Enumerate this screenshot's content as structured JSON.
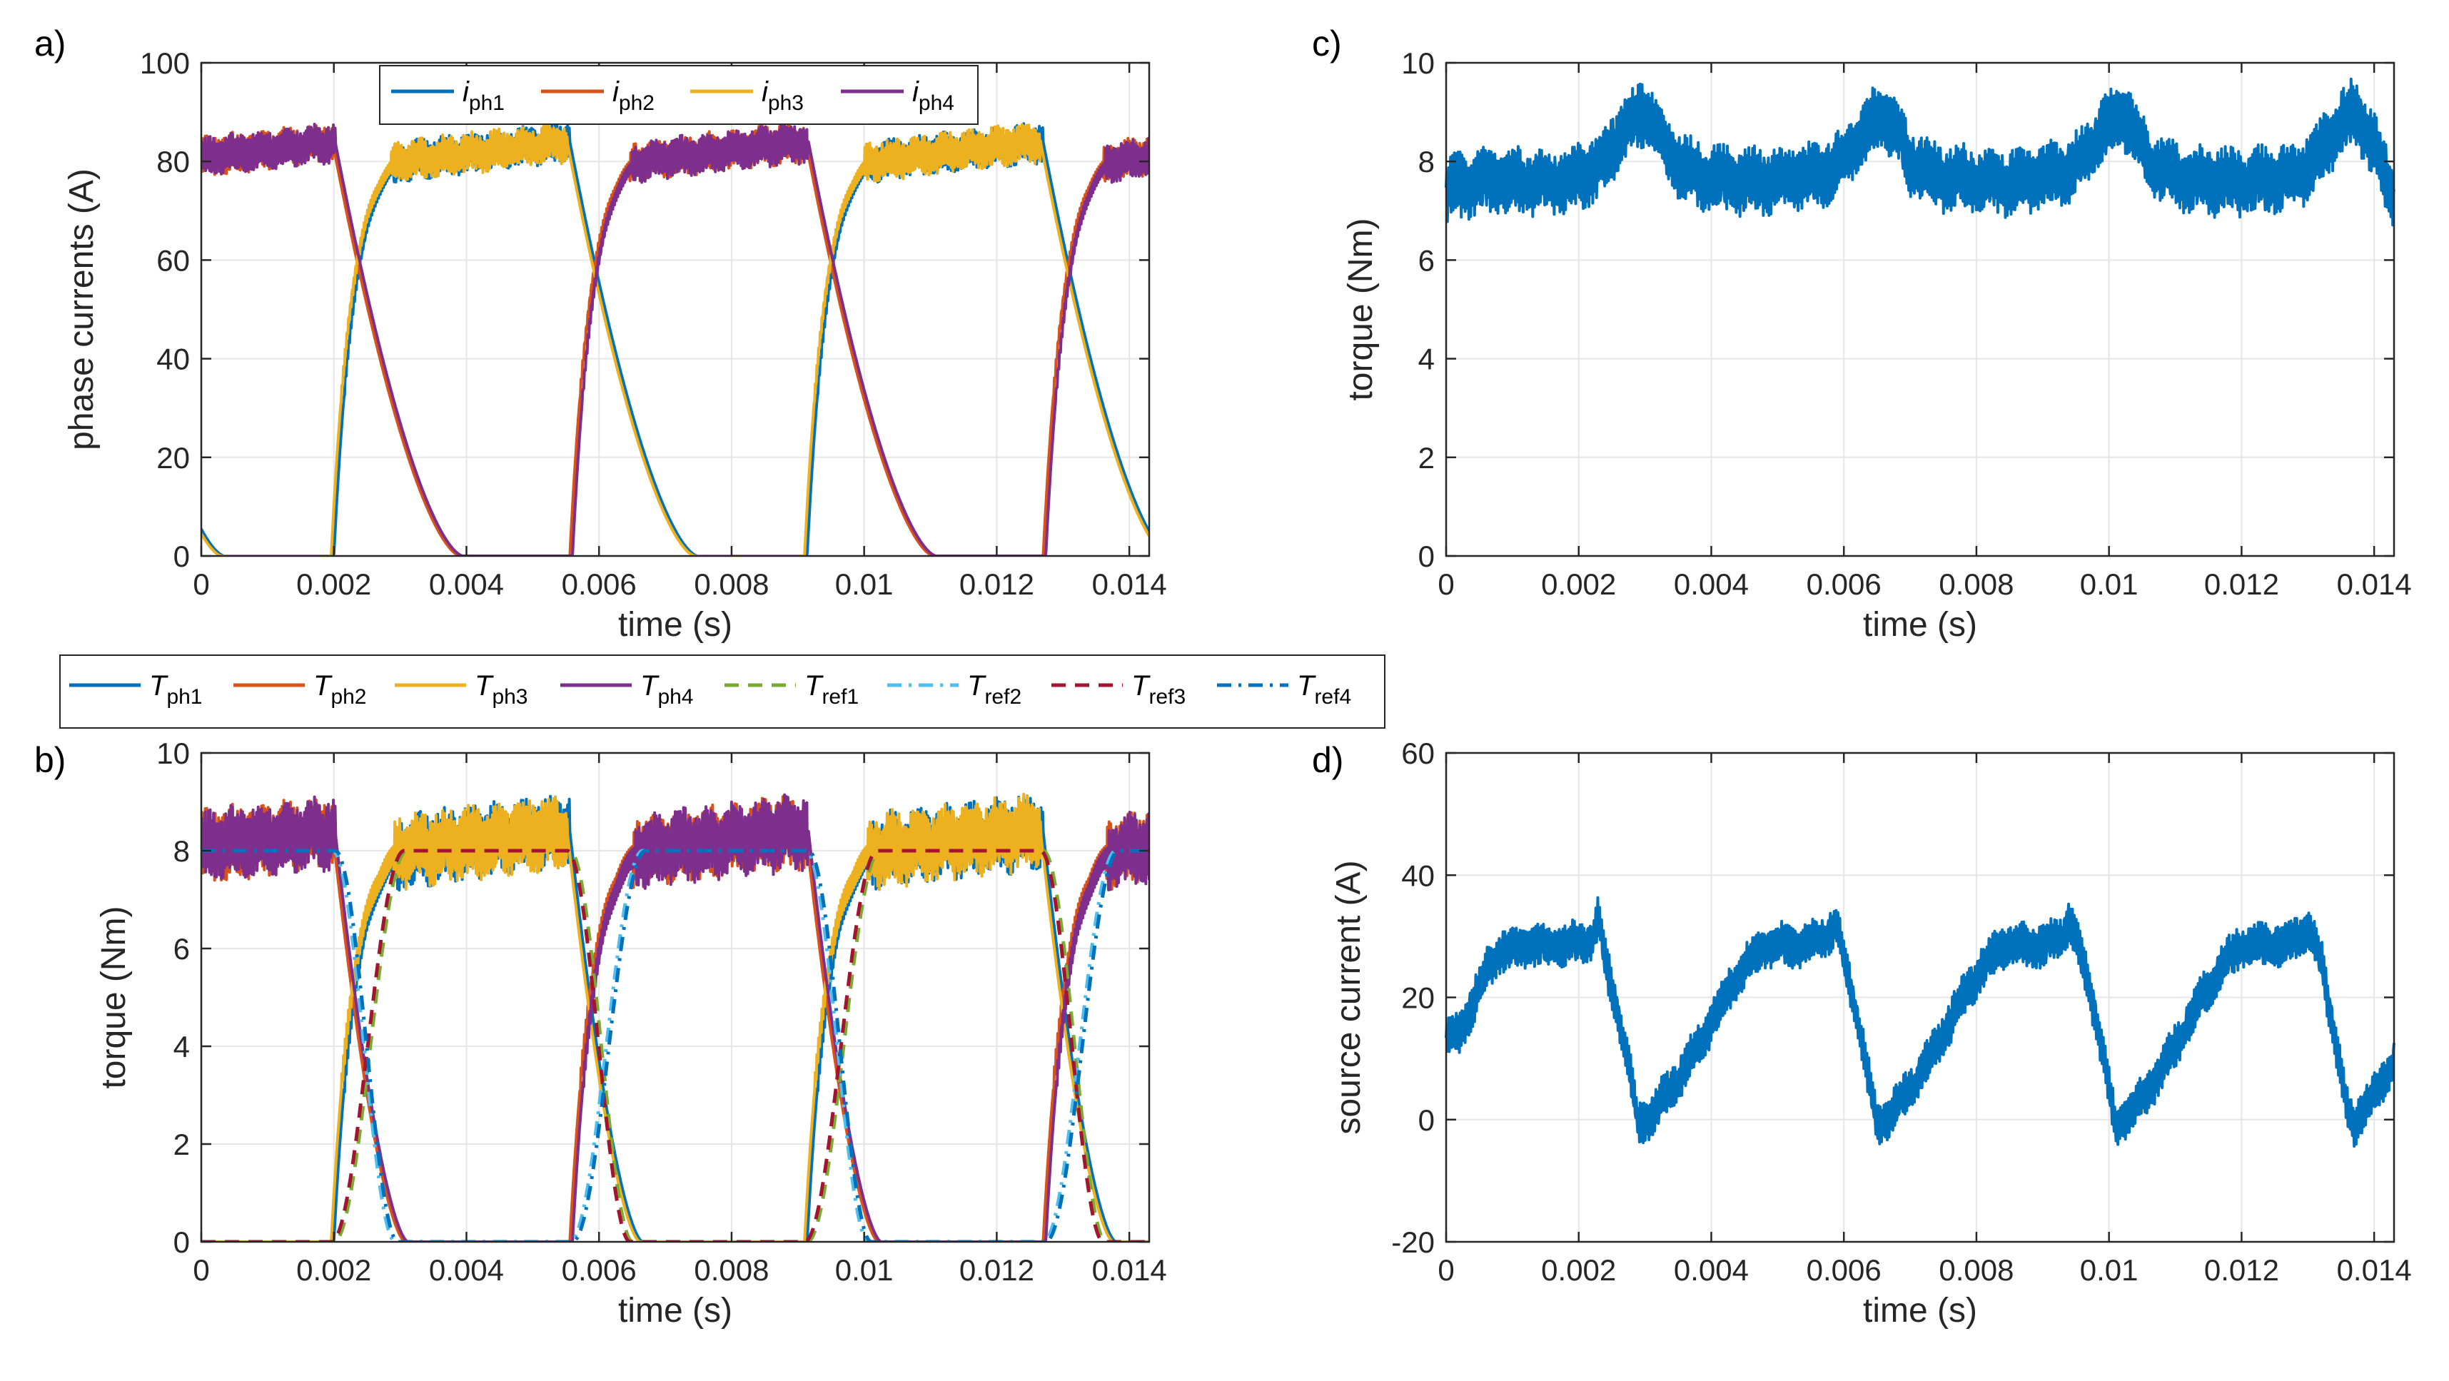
{
  "colors": {
    "ph1": "#0072BD",
    "ph2": "#D95319",
    "ph3": "#EDB120",
    "ph4": "#7E2F8E",
    "ref1": "#77AC30",
    "ref2": "#4DBEEE",
    "ref3": "#A2142F",
    "ref4": "#0072BD",
    "grid": "#e6e6e6",
    "axis": "#262626"
  },
  "chart_data": [
    {
      "id": "a",
      "panel_label": "a)",
      "type": "line",
      "xlabel": "time (s)",
      "ylabel": "phase currents (A)",
      "xlim": [
        0,
        0.0143
      ],
      "ylim": [
        0,
        100
      ],
      "xticks": [
        0,
        0.002,
        0.004,
        0.006,
        0.008,
        0.01,
        0.012,
        0.014
      ],
      "xtick_labels": [
        "0",
        "0.002",
        "0.004",
        "0.006",
        "0.008",
        "0.01",
        "0.012",
        "0.014"
      ],
      "yticks": [
        0,
        20,
        40,
        60,
        80,
        100
      ],
      "ytick_labels": [
        "0",
        "20",
        "40",
        "60",
        "80",
        "100"
      ],
      "grid": true,
      "legend_position": "top-inside",
      "period": 0.00714,
      "conduction": {
        "on": 0.00356,
        "flat_level": 80,
        "ripple": 3.5,
        "rise_time": 0.001,
        "fall_time": 0.00193
      },
      "series": [
        {
          "main": "i",
          "sub": "ph1",
          "color_key": "ph1",
          "style": "solid",
          "offset": 0.002
        },
        {
          "main": "i",
          "sub": "ph2",
          "color_key": "ph2",
          "style": "solid",
          "offset": 0.0127
        },
        {
          "main": "i",
          "sub": "ph3",
          "color_key": "ph3",
          "style": "solid",
          "offset": 0.0091
        },
        {
          "main": "i",
          "sub": "ph4",
          "color_key": "ph4",
          "style": "solid",
          "offset": 0.0056
        }
      ]
    },
    {
      "id": "b",
      "panel_label": "b)",
      "type": "line",
      "xlabel": "time (s)",
      "ylabel": "torque (Nm)",
      "xlim": [
        0,
        0.0143
      ],
      "ylim": [
        0,
        10
      ],
      "xticks": [
        0,
        0.002,
        0.004,
        0.006,
        0.008,
        0.01,
        0.012,
        0.014
      ],
      "xtick_labels": [
        "0",
        "0.002",
        "0.004",
        "0.006",
        "0.008",
        "0.01",
        "0.012",
        "0.014"
      ],
      "yticks": [
        0,
        2,
        4,
        6,
        8,
        10
      ],
      "ytick_labels": [
        "0",
        "2",
        "4",
        "6",
        "8",
        "10"
      ],
      "grid": true,
      "legend_position": "above",
      "period": 0.00714,
      "conduction": {
        "on": 0.00356,
        "flat_level": 8,
        "ripple": 0.65,
        "rise_time": 0.00105,
        "fall_time": 0.0011
      },
      "reference": {
        "on": 0.00356,
        "level": 8,
        "rise_time": 0.0011,
        "fall_time": 0.00095
      },
      "series": [
        {
          "main": "T",
          "sub": "ph1",
          "color_key": "ph1",
          "style": "solid",
          "offset": 0.002
        },
        {
          "main": "T",
          "sub": "ph2",
          "color_key": "ph2",
          "style": "solid",
          "offset": 0.0127
        },
        {
          "main": "T",
          "sub": "ph3",
          "color_key": "ph3",
          "style": "solid",
          "offset": 0.0091
        },
        {
          "main": "T",
          "sub": "ph4",
          "color_key": "ph4",
          "style": "solid",
          "offset": 0.0056
        },
        {
          "main": "T",
          "sub": "ref1",
          "color_key": "ref1",
          "style": "dashed",
          "offset": 0.002
        },
        {
          "main": "T",
          "sub": "ref2",
          "color_key": "ref2",
          "style": "dashdot",
          "offset": 0.0127
        },
        {
          "main": "T",
          "sub": "ref3",
          "color_key": "ref3",
          "style": "dashed",
          "offset": 0.0091
        },
        {
          "main": "T",
          "sub": "ref4",
          "color_key": "ref4",
          "style": "dashdot",
          "offset": 0.0056
        }
      ]
    },
    {
      "id": "c",
      "panel_label": "c)",
      "type": "line",
      "xlabel": "time (s)",
      "ylabel": "torque (Nm)",
      "xlim": [
        0,
        0.0143
      ],
      "ylim": [
        0,
        10
      ],
      "xticks": [
        0,
        0.002,
        0.004,
        0.006,
        0.008,
        0.01,
        0.012,
        0.014
      ],
      "xtick_labels": [
        "0",
        "0.002",
        "0.004",
        "0.006",
        "0.008",
        "0.01",
        "0.012",
        "0.014"
      ],
      "yticks": [
        0,
        2,
        4,
        6,
        8,
        10
      ],
      "ytick_labels": [
        "0",
        "2",
        "4",
        "6",
        "8",
        "10"
      ],
      "grid": true,
      "color_key": "ph1",
      "points": [
        [
          0,
          7.4
        ],
        [
          0.0004,
          7.6
        ],
        [
          0.001,
          7.6
        ],
        [
          0.0016,
          7.6
        ],
        [
          0.0021,
          7.7
        ],
        [
          0.0024,
          8.0
        ],
        [
          0.0026,
          8.5
        ],
        [
          0.0028,
          8.8
        ],
        [
          0.003,
          9.0
        ],
        [
          0.0032,
          8.6
        ],
        [
          0.0034,
          8.1
        ],
        [
          0.0038,
          7.7
        ],
        [
          0.0044,
          7.6
        ],
        [
          0.005,
          7.6
        ],
        [
          0.0056,
          7.7
        ],
        [
          0.006,
          8.0
        ],
        [
          0.0063,
          8.6
        ],
        [
          0.0066,
          9.0
        ],
        [
          0.0068,
          8.6
        ],
        [
          0.007,
          8.0
        ],
        [
          0.0074,
          7.7
        ],
        [
          0.008,
          7.6
        ],
        [
          0.0086,
          7.6
        ],
        [
          0.0092,
          7.7
        ],
        [
          0.0096,
          8.0
        ],
        [
          0.0099,
          8.6
        ],
        [
          0.0102,
          9.0
        ],
        [
          0.0104,
          8.6
        ],
        [
          0.0106,
          8.0
        ],
        [
          0.011,
          7.7
        ],
        [
          0.0116,
          7.6
        ],
        [
          0.0122,
          7.6
        ],
        [
          0.0128,
          7.7
        ],
        [
          0.0131,
          8.0
        ],
        [
          0.0134,
          8.6
        ],
        [
          0.0137,
          9.0
        ],
        [
          0.0139,
          8.6
        ],
        [
          0.0141,
          8.0
        ],
        [
          0.0143,
          7.2
        ]
      ],
      "ripple": 0.6
    },
    {
      "id": "d",
      "panel_label": "d)",
      "type": "line",
      "xlabel": "time (s)",
      "ylabel": "source current (A)",
      "xlim": [
        0,
        0.0143
      ],
      "ylim": [
        -20,
        60
      ],
      "xticks": [
        0,
        0.002,
        0.004,
        0.006,
        0.008,
        0.01,
        0.012,
        0.014
      ],
      "xtick_labels": [
        "0",
        "0.002",
        "0.004",
        "0.006",
        "0.008",
        "0.01",
        "0.012",
        "0.014"
      ],
      "yticks": [
        -20,
        0,
        20,
        40,
        60
      ],
      "ytick_labels": [
        "-20",
        "0",
        "20",
        "40",
        "60"
      ],
      "grid": true,
      "color_key": "ph1",
      "points": [
        [
          0,
          13
        ],
        [
          0.0002,
          14
        ],
        [
          0.0004,
          19
        ],
        [
          0.0006,
          24
        ],
        [
          0.0008,
          27.5
        ],
        [
          0.0012,
          28.5
        ],
        [
          0.0018,
          28.5
        ],
        [
          0.0022,
          29.5
        ],
        [
          0.0023,
          33
        ],
        [
          0.0024,
          26
        ],
        [
          0.0026,
          17
        ],
        [
          0.0028,
          6
        ],
        [
          0.0029,
          -1
        ],
        [
          0.0031,
          1
        ],
        [
          0.0034,
          5
        ],
        [
          0.0038,
          12
        ],
        [
          0.0042,
          20
        ],
        [
          0.0045,
          25
        ],
        [
          0.0048,
          28.5
        ],
        [
          0.0054,
          28.5
        ],
        [
          0.0057,
          30
        ],
        [
          0.0059,
          32
        ],
        [
          0.006,
          26
        ],
        [
          0.0062,
          17
        ],
        [
          0.0064,
          5
        ],
        [
          0.0065,
          -1
        ],
        [
          0.0067,
          1
        ],
        [
          0.007,
          5
        ],
        [
          0.0074,
          12
        ],
        [
          0.0078,
          20
        ],
        [
          0.0081,
          25
        ],
        [
          0.0084,
          28.5
        ],
        [
          0.009,
          28.5
        ],
        [
          0.0093,
          30
        ],
        [
          0.0094,
          33
        ],
        [
          0.0096,
          26
        ],
        [
          0.0098,
          17
        ],
        [
          0.01,
          5
        ],
        [
          0.0101,
          -1
        ],
        [
          0.0103,
          1
        ],
        [
          0.0106,
          5
        ],
        [
          0.011,
          12
        ],
        [
          0.0114,
          20
        ],
        [
          0.0117,
          25
        ],
        [
          0.012,
          28.5
        ],
        [
          0.0126,
          28.5
        ],
        [
          0.0129,
          30
        ],
        [
          0.013,
          32
        ],
        [
          0.0132,
          26
        ],
        [
          0.0134,
          14
        ],
        [
          0.0136,
          1
        ],
        [
          0.0137,
          -1
        ],
        [
          0.0139,
          3
        ],
        [
          0.0141,
          5
        ],
        [
          0.0143,
          10
        ]
      ],
      "ripple": 3.2
    }
  ]
}
